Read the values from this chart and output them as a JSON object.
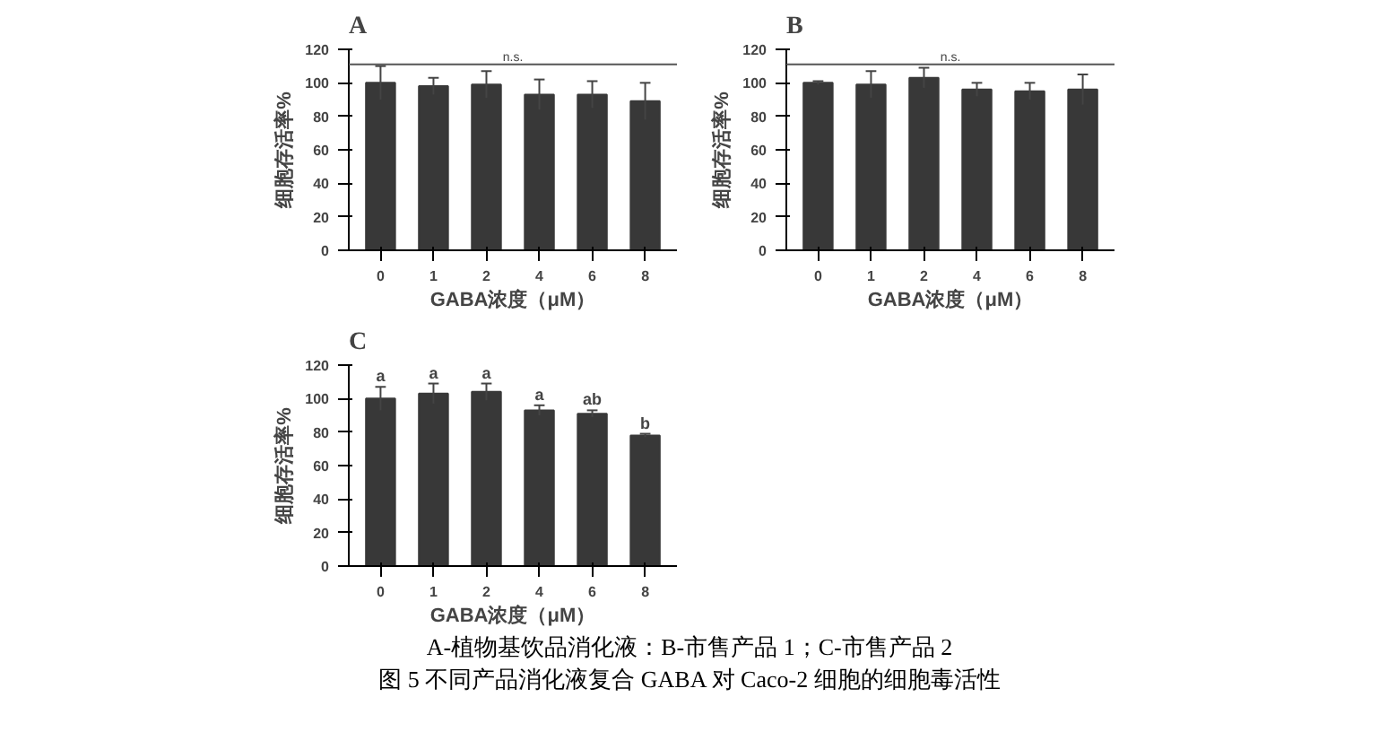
{
  "chart_data": [
    {
      "type": "bar",
      "title": "A",
      "xlabel": "GABA浓度（μM）",
      "ylabel": "细胞存活率%",
      "categories": [
        "0",
        "1",
        "2",
        "4",
        "6",
        "8"
      ],
      "series": [
        {
          "color": "#383838",
          "values": [
            100,
            98,
            99,
            93,
            93,
            89
          ],
          "errors": [
            10,
            5,
            8,
            9,
            8,
            11
          ]
        }
      ],
      "ylim": [
        0,
        120
      ],
      "yticks": [
        0,
        20,
        40,
        60,
        80,
        100,
        120
      ],
      "ref_lines": [
        {
          "axis": "y",
          "value": 111,
          "label": "n.s."
        }
      ]
    },
    {
      "type": "bar",
      "title": "B",
      "xlabel": "GABA浓度（μM）",
      "ylabel": "细胞存活率%",
      "categories": [
        "0",
        "1",
        "2",
        "4",
        "6",
        "8"
      ],
      "series": [
        {
          "color": "#383838",
          "values": [
            100,
            99,
            103,
            96,
            95,
            96
          ],
          "errors": [
            1,
            8,
            6,
            4,
            5,
            9
          ]
        }
      ],
      "ylim": [
        0,
        120
      ],
      "yticks": [
        0,
        20,
        40,
        60,
        80,
        100,
        120
      ],
      "ref_lines": [
        {
          "axis": "y",
          "value": 111,
          "label": "n.s."
        }
      ]
    },
    {
      "type": "bar",
      "title": "C",
      "xlabel": "GABA浓度（μM）",
      "ylabel": "细胞存活率%",
      "categories": [
        "0",
        "1",
        "2",
        "4",
        "6",
        "8"
      ],
      "series": [
        {
          "color": "#383838",
          "values": [
            100,
            103,
            104,
            93,
            91,
            78
          ],
          "errors": [
            7,
            6,
            5,
            3,
            2,
            1
          ]
        }
      ],
      "ylim": [
        0,
        120
      ],
      "yticks": [
        0,
        20,
        40,
        60,
        80,
        100,
        120
      ],
      "annotations": [
        {
          "text": "a",
          "x": "0",
          "y": 107
        },
        {
          "text": "a",
          "x": "1",
          "y": 109
        },
        {
          "text": "a",
          "x": "2",
          "y": 109
        },
        {
          "text": "a",
          "x": "4",
          "y": 96
        },
        {
          "text": "ab",
          "x": "6",
          "y": 93
        },
        {
          "text": "b",
          "x": "8",
          "y": 79
        },
        "A-植物基饮品消化液：B-市售产品 1；C-市售产品 2",
        "图 5 不同产品消化液复合 GABA 对 Caco-2 细胞的细胞毒活性"
      ]
    }
  ]
}
